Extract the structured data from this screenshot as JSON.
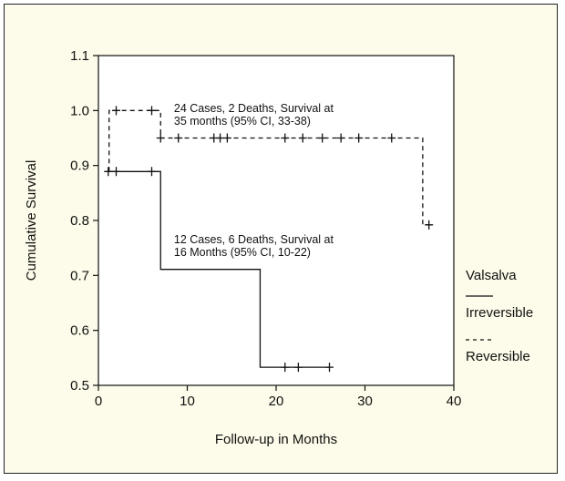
{
  "chart_data": {
    "type": "line",
    "xlabel": "Follow-up in Months",
    "ylabel": "Cumulative Survival",
    "xlim": [
      0,
      40
    ],
    "ylim": [
      0.5,
      1.1
    ],
    "xticks": [
      "0",
      "10",
      "20",
      "30",
      "40"
    ],
    "yticks": [
      "0.5",
      "0.6",
      "0.7",
      "0.8",
      "0.9",
      "1.0",
      "1.1"
    ],
    "grid": false,
    "legend": {
      "title": "Valsalva",
      "placement": "right",
      "entries": [
        "Irreversible",
        "Reversible"
      ]
    },
    "series": [
      {
        "name": "Irreversible",
        "style": "solid",
        "step": [
          [
            1,
            0.889
          ],
          [
            7,
            0.889
          ],
          [
            7,
            0.711
          ],
          [
            18.2,
            0.711
          ],
          [
            18.2,
            0.533
          ],
          [
            26,
            0.533
          ]
        ],
        "censored": [
          [
            1.1,
            0.889
          ],
          [
            2,
            0.889
          ],
          [
            6,
            0.889
          ],
          [
            21,
            0.533
          ],
          [
            22.5,
            0.533
          ],
          [
            26,
            0.533
          ]
        ]
      },
      {
        "name": "Reversible",
        "style": "dashed",
        "step": [
          [
            1.2,
            0.889
          ],
          [
            1.2,
            1.0
          ],
          [
            7,
            1.0
          ],
          [
            7,
            0.95
          ],
          [
            36.5,
            0.95
          ],
          [
            36.5,
            0.792
          ],
          [
            37.2,
            0.792
          ]
        ],
        "censored": [
          [
            2,
            1.0
          ],
          [
            6,
            1.0
          ],
          [
            7,
            0.95
          ],
          [
            9,
            0.95
          ],
          [
            13,
            0.95
          ],
          [
            13.7,
            0.95
          ],
          [
            14.5,
            0.95
          ],
          [
            21,
            0.95
          ],
          [
            23,
            0.95
          ],
          [
            25.2,
            0.95
          ],
          [
            27.3,
            0.95
          ],
          [
            29.3,
            0.95
          ],
          [
            33,
            0.95
          ],
          [
            37.2,
            0.792
          ]
        ]
      }
    ],
    "annotations": [
      {
        "lines": [
          "24 Cases, 2 Deaths, Survival at",
          "35 months (95% CI, 33-38)"
        ],
        "anchor": [
          8.5,
          1.0
        ]
      },
      {
        "lines": [
          "12 Cases, 6 Deaths, Survival at",
          "16 Months (95% CI, 10-22)"
        ],
        "anchor": [
          8.5,
          0.76
        ]
      }
    ]
  }
}
